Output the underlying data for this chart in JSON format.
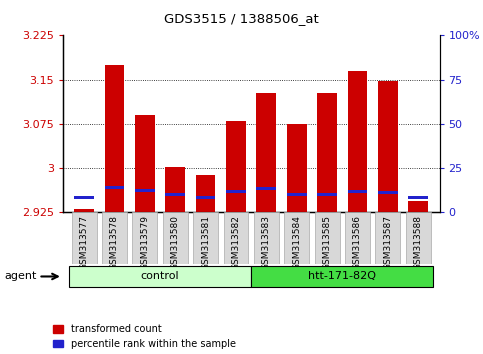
{
  "title": "GDS3515 / 1388506_at",
  "samples": [
    "GSM313577",
    "GSM313578",
    "GSM313579",
    "GSM313580",
    "GSM313581",
    "GSM313582",
    "GSM313583",
    "GSM313584",
    "GSM313585",
    "GSM313586",
    "GSM313587",
    "GSM313588"
  ],
  "red_values": [
    2.93,
    3.175,
    3.09,
    3.002,
    2.988,
    3.08,
    3.128,
    3.074,
    3.127,
    3.165,
    3.148,
    2.944
  ],
  "blue_values": [
    2.95,
    2.968,
    2.962,
    2.955,
    2.95,
    2.96,
    2.966,
    2.955,
    2.955,
    2.96,
    2.958,
    2.95
  ],
  "ymin": 2.925,
  "ymax": 3.225,
  "yticks": [
    2.925,
    3.0,
    3.075,
    3.15,
    3.225
  ],
  "ytick_labels": [
    "2.925",
    "3",
    "3.075",
    "3.15",
    "3.225"
  ],
  "y2ticks": [
    0,
    25,
    50,
    75,
    100
  ],
  "y2tick_labels": [
    "0",
    "25",
    "50",
    "75",
    "100%"
  ],
  "group_labels": [
    "control",
    "htt-171-82Q"
  ],
  "group_colors": [
    "#ccffcc",
    "#44dd44"
  ],
  "bar_color_red": "#cc0000",
  "bar_color_blue": "#2222cc",
  "bar_width": 0.65,
  "agent_label": "agent",
  "legend_red": "transformed count",
  "legend_blue": "percentile rank within the sample"
}
